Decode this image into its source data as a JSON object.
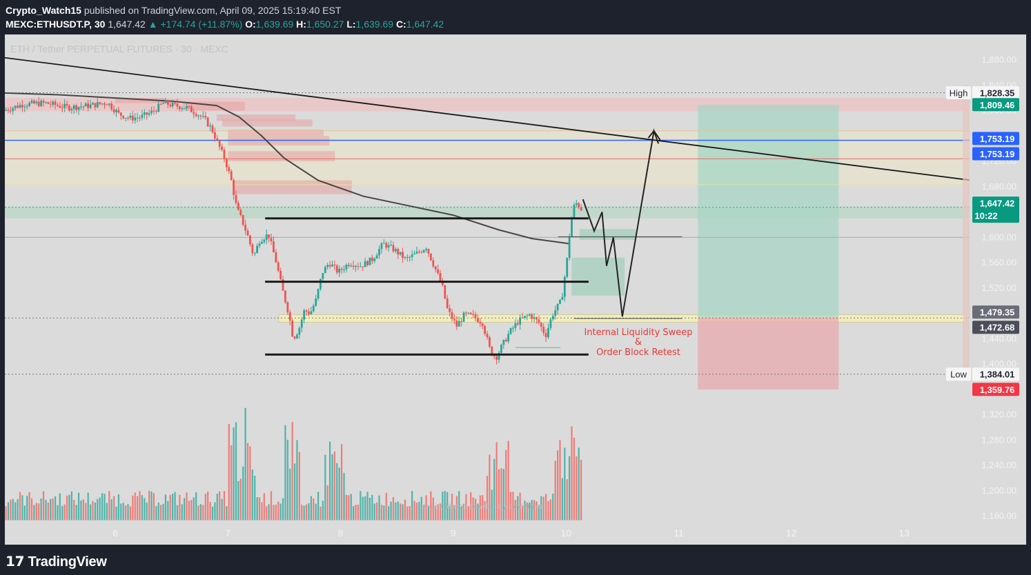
{
  "header": {
    "author": "Crypto_Watch15",
    "published": "published on TradingView.com, April 09, 2025 15:19:40 EST",
    "symbol": "MEXC:ETHUSDT.P, 30",
    "last": "1,647.42",
    "change": "▲ +174.74 (+11.87%)",
    "o_label": "O:",
    "o_value": "1,639.69",
    "h_label": "H:",
    "h_value": "1,650.27",
    "l_label": "L:",
    "l_value": "1,639.69",
    "c_label": "C:",
    "c_value": "1,647.42"
  },
  "chart_title": "ETH / Tether PERPETUAL FUTURES · 30 · MEXC",
  "watermark": "© Liquidation Levels · By Leviathan",
  "annotation": {
    "line1": "Internal Liquidity Sweep",
    "line2": "&",
    "line3": "Order Block Retest"
  },
  "price_labels": {
    "high_label": "High",
    "high_value": "1,828.35",
    "tp": "1,809.46",
    "blue1": "1,753.19",
    "blue2": "1,753.19",
    "current": "1,647.42",
    "countdown": "10:22",
    "gray1": "1,479.35",
    "gray2": "1,472.68",
    "low_label": "Low",
    "low_value": "1,384.01",
    "sl": "1,359.76"
  },
  "footer": {
    "logo": "TradingView"
  },
  "colors": {
    "up": "#26a69a",
    "down": "#ef5350",
    "bg": "#dbdbdb",
    "blue": "#2962ff",
    "green_tag": "#089981",
    "red_tag": "#f23645"
  },
  "chart_data": {
    "type": "candlestick",
    "title": "ETH / Tether PERPETUAL FUTURES · 30 · MEXC",
    "x_ticks": [
      "6",
      "7",
      "8",
      "9",
      "10",
      "11",
      "12",
      "13"
    ],
    "y_ticks": [
      "1,880.00",
      "1,840.00",
      "1,800.00",
      "1,760.00",
      "1,720.00",
      "1,680.00",
      "1,640.00",
      "1,600.00",
      "1,560.00",
      "1,520.00",
      "1,480.00",
      "1,440.00",
      "1,400.00",
      "1,360.00",
      "1,320.00",
      "1,280.00",
      "1,240.00",
      "1,200.00",
      "1,160.00"
    ],
    "y_values": [
      1880,
      1840,
      1800,
      1760,
      1720,
      1680,
      1640,
      1600,
      1560,
      1520,
      1480,
      1440,
      1400,
      1360,
      1320,
      1280,
      1240,
      1200,
      1160
    ],
    "ylim": [
      1115,
      1900
    ],
    "xlim": [
      5.0,
      13.6
    ],
    "ohlc_path": [
      [
        5.03,
        1800
      ],
      [
        5.2,
        1810
      ],
      [
        5.4,
        1812
      ],
      [
        5.6,
        1805
      ],
      [
        5.8,
        1808
      ],
      [
        5.95,
        1813
      ],
      [
        6.05,
        1795
      ],
      [
        6.15,
        1788
      ],
      [
        6.25,
        1790
      ],
      [
        6.35,
        1798
      ],
      [
        6.45,
        1812
      ],
      [
        6.55,
        1808
      ],
      [
        6.65,
        1805
      ],
      [
        6.75,
        1795
      ],
      [
        6.82,
        1785
      ],
      [
        6.88,
        1770
      ],
      [
        6.94,
        1745
      ],
      [
        7.0,
        1720
      ],
      [
        7.05,
        1690
      ],
      [
        7.1,
        1645
      ],
      [
        7.15,
        1625
      ],
      [
        7.2,
        1600
      ],
      [
        7.25,
        1570
      ],
      [
        7.3,
        1595
      ],
      [
        7.38,
        1605
      ],
      [
        7.45,
        1560
      ],
      [
        7.5,
        1520
      ],
      [
        7.56,
        1480
      ],
      [
        7.6,
        1440
      ],
      [
        7.65,
        1455
      ],
      [
        7.7,
        1485
      ],
      [
        7.75,
        1480
      ],
      [
        7.8,
        1500
      ],
      [
        7.86,
        1545
      ],
      [
        7.92,
        1560
      ],
      [
        8.0,
        1545
      ],
      [
        8.1,
        1560
      ],
      [
        8.2,
        1555
      ],
      [
        8.3,
        1565
      ],
      [
        8.4,
        1590
      ],
      [
        8.5,
        1580
      ],
      [
        8.6,
        1565
      ],
      [
        8.7,
        1575
      ],
      [
        8.78,
        1585
      ],
      [
        8.85,
        1555
      ],
      [
        8.92,
        1525
      ],
      [
        8.97,
        1485
      ],
      [
        9.05,
        1460
      ],
      [
        9.12,
        1478
      ],
      [
        9.2,
        1475
      ],
      [
        9.28,
        1465
      ],
      [
        9.35,
        1420
      ],
      [
        9.4,
        1410
      ],
      [
        9.45,
        1428
      ],
      [
        9.52,
        1450
      ],
      [
        9.6,
        1468
      ],
      [
        9.7,
        1478
      ],
      [
        9.78,
        1465
      ],
      [
        9.84,
        1445
      ],
      [
        9.9,
        1478
      ],
      [
        9.98,
        1500
      ],
      [
        10.03,
        1565
      ],
      [
        10.06,
        1620
      ],
      [
        10.09,
        1648
      ],
      [
        10.12,
        1655
      ],
      [
        10.15,
        1645
      ]
    ],
    "volume_bars_count": 168,
    "volume_hints": {
      "peak_day7": 1345,
      "peak_day8": 1310,
      "peak_day10": 1330,
      "base": 1160
    },
    "projection_path": [
      [
        10.15,
        1660
      ],
      [
        10.25,
        1610
      ],
      [
        10.32,
        1640
      ],
      [
        10.36,
        1555
      ],
      [
        10.42,
        1600
      ],
      [
        10.5,
        1475
      ],
      [
        10.78,
        1768
      ],
      [
        10.82,
        1748
      ]
    ],
    "trendlines": [
      {
        "from": [
          5.0,
          1884
        ],
        "to": [
          13.6,
          1690
        ],
        "style": "solid"
      }
    ],
    "ma_curve": [
      [
        5.0,
        1828
      ],
      [
        5.5,
        1825
      ],
      [
        6.0,
        1820
      ],
      [
        6.5,
        1815
      ],
      [
        6.9,
        1808
      ],
      [
        7.1,
        1790
      ],
      [
        7.3,
        1760
      ],
      [
        7.5,
        1725
      ],
      [
        7.8,
        1690
      ],
      [
        8.2,
        1665
      ],
      [
        8.6,
        1650
      ],
      [
        9.0,
        1635
      ],
      [
        9.4,
        1612
      ],
      [
        9.7,
        1598
      ],
      [
        9.95,
        1592
      ],
      [
        10.03,
        1590
      ]
    ],
    "horizontal_levels": [
      {
        "name": "blue",
        "y": 1753.19
      },
      {
        "name": "red",
        "y": 1724
      },
      {
        "name": "teal-band-top",
        "y": 1649
      },
      {
        "name": "teal-band-bottom",
        "y": 1630
      },
      {
        "name": "gray",
        "y": 1600
      },
      {
        "name": "upper-pink",
        "y": 1810
      }
    ],
    "range_lines": [
      {
        "from": 7.33,
        "to": 10.2,
        "y": 1630
      },
      {
        "from": 7.33,
        "to": 10.2,
        "y": 1530
      },
      {
        "from": 7.33,
        "to": 10.2,
        "y": 1415
      }
    ],
    "position_box": {
      "x_from": 11.17,
      "x_to": 12.42,
      "entry": 1473,
      "target": 1809.46,
      "stop": 1359.76
    },
    "order_block": {
      "x_from": 7.45,
      "x_to": 13.55,
      "y_top": 1478,
      "y_bottom": 1466
    },
    "premium_zone": {
      "y_top": 1768,
      "y_bottom": 1683
    },
    "supply_zone": {
      "y_top": 1820,
      "y_bottom": 1799
    }
  }
}
